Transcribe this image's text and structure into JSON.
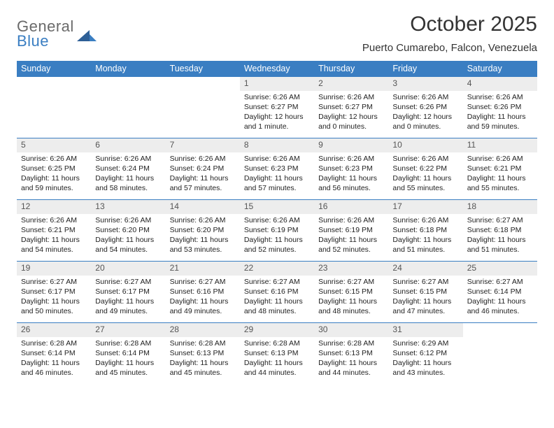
{
  "brand": {
    "top": "General",
    "bottom": "Blue"
  },
  "title": "October 2025",
  "location": "Puerto Cumarebo, Falcon, Venezuela",
  "colors": {
    "header_bg": "#3a7ec2",
    "header_text": "#ffffff",
    "daynum_bg": "#ededed",
    "border": "#3a7ec2",
    "logo_gray": "#6a6a6a",
    "logo_blue": "#3a7ec2"
  },
  "weekdays": [
    "Sunday",
    "Monday",
    "Tuesday",
    "Wednesday",
    "Thursday",
    "Friday",
    "Saturday"
  ],
  "weeks": [
    [
      {
        "n": "",
        "sr": "",
        "ss": "",
        "dl": ""
      },
      {
        "n": "",
        "sr": "",
        "ss": "",
        "dl": ""
      },
      {
        "n": "",
        "sr": "",
        "ss": "",
        "dl": ""
      },
      {
        "n": "1",
        "sr": "Sunrise: 6:26 AM",
        "ss": "Sunset: 6:27 PM",
        "dl": "Daylight: 12 hours and 1 minute."
      },
      {
        "n": "2",
        "sr": "Sunrise: 6:26 AM",
        "ss": "Sunset: 6:27 PM",
        "dl": "Daylight: 12 hours and 0 minutes."
      },
      {
        "n": "3",
        "sr": "Sunrise: 6:26 AM",
        "ss": "Sunset: 6:26 PM",
        "dl": "Daylight: 12 hours and 0 minutes."
      },
      {
        "n": "4",
        "sr": "Sunrise: 6:26 AM",
        "ss": "Sunset: 6:26 PM",
        "dl": "Daylight: 11 hours and 59 minutes."
      }
    ],
    [
      {
        "n": "5",
        "sr": "Sunrise: 6:26 AM",
        "ss": "Sunset: 6:25 PM",
        "dl": "Daylight: 11 hours and 59 minutes."
      },
      {
        "n": "6",
        "sr": "Sunrise: 6:26 AM",
        "ss": "Sunset: 6:24 PM",
        "dl": "Daylight: 11 hours and 58 minutes."
      },
      {
        "n": "7",
        "sr": "Sunrise: 6:26 AM",
        "ss": "Sunset: 6:24 PM",
        "dl": "Daylight: 11 hours and 57 minutes."
      },
      {
        "n": "8",
        "sr": "Sunrise: 6:26 AM",
        "ss": "Sunset: 6:23 PM",
        "dl": "Daylight: 11 hours and 57 minutes."
      },
      {
        "n": "9",
        "sr": "Sunrise: 6:26 AM",
        "ss": "Sunset: 6:23 PM",
        "dl": "Daylight: 11 hours and 56 minutes."
      },
      {
        "n": "10",
        "sr": "Sunrise: 6:26 AM",
        "ss": "Sunset: 6:22 PM",
        "dl": "Daylight: 11 hours and 55 minutes."
      },
      {
        "n": "11",
        "sr": "Sunrise: 6:26 AM",
        "ss": "Sunset: 6:21 PM",
        "dl": "Daylight: 11 hours and 55 minutes."
      }
    ],
    [
      {
        "n": "12",
        "sr": "Sunrise: 6:26 AM",
        "ss": "Sunset: 6:21 PM",
        "dl": "Daylight: 11 hours and 54 minutes."
      },
      {
        "n": "13",
        "sr": "Sunrise: 6:26 AM",
        "ss": "Sunset: 6:20 PM",
        "dl": "Daylight: 11 hours and 54 minutes."
      },
      {
        "n": "14",
        "sr": "Sunrise: 6:26 AM",
        "ss": "Sunset: 6:20 PM",
        "dl": "Daylight: 11 hours and 53 minutes."
      },
      {
        "n": "15",
        "sr": "Sunrise: 6:26 AM",
        "ss": "Sunset: 6:19 PM",
        "dl": "Daylight: 11 hours and 52 minutes."
      },
      {
        "n": "16",
        "sr": "Sunrise: 6:26 AM",
        "ss": "Sunset: 6:19 PM",
        "dl": "Daylight: 11 hours and 52 minutes."
      },
      {
        "n": "17",
        "sr": "Sunrise: 6:26 AM",
        "ss": "Sunset: 6:18 PM",
        "dl": "Daylight: 11 hours and 51 minutes."
      },
      {
        "n": "18",
        "sr": "Sunrise: 6:27 AM",
        "ss": "Sunset: 6:18 PM",
        "dl": "Daylight: 11 hours and 51 minutes."
      }
    ],
    [
      {
        "n": "19",
        "sr": "Sunrise: 6:27 AM",
        "ss": "Sunset: 6:17 PM",
        "dl": "Daylight: 11 hours and 50 minutes."
      },
      {
        "n": "20",
        "sr": "Sunrise: 6:27 AM",
        "ss": "Sunset: 6:17 PM",
        "dl": "Daylight: 11 hours and 49 minutes."
      },
      {
        "n": "21",
        "sr": "Sunrise: 6:27 AM",
        "ss": "Sunset: 6:16 PM",
        "dl": "Daylight: 11 hours and 49 minutes."
      },
      {
        "n": "22",
        "sr": "Sunrise: 6:27 AM",
        "ss": "Sunset: 6:16 PM",
        "dl": "Daylight: 11 hours and 48 minutes."
      },
      {
        "n": "23",
        "sr": "Sunrise: 6:27 AM",
        "ss": "Sunset: 6:15 PM",
        "dl": "Daylight: 11 hours and 48 minutes."
      },
      {
        "n": "24",
        "sr": "Sunrise: 6:27 AM",
        "ss": "Sunset: 6:15 PM",
        "dl": "Daylight: 11 hours and 47 minutes."
      },
      {
        "n": "25",
        "sr": "Sunrise: 6:27 AM",
        "ss": "Sunset: 6:14 PM",
        "dl": "Daylight: 11 hours and 46 minutes."
      }
    ],
    [
      {
        "n": "26",
        "sr": "Sunrise: 6:28 AM",
        "ss": "Sunset: 6:14 PM",
        "dl": "Daylight: 11 hours and 46 minutes."
      },
      {
        "n": "27",
        "sr": "Sunrise: 6:28 AM",
        "ss": "Sunset: 6:14 PM",
        "dl": "Daylight: 11 hours and 45 minutes."
      },
      {
        "n": "28",
        "sr": "Sunrise: 6:28 AM",
        "ss": "Sunset: 6:13 PM",
        "dl": "Daylight: 11 hours and 45 minutes."
      },
      {
        "n": "29",
        "sr": "Sunrise: 6:28 AM",
        "ss": "Sunset: 6:13 PM",
        "dl": "Daylight: 11 hours and 44 minutes."
      },
      {
        "n": "30",
        "sr": "Sunrise: 6:28 AM",
        "ss": "Sunset: 6:13 PM",
        "dl": "Daylight: 11 hours and 44 minutes."
      },
      {
        "n": "31",
        "sr": "Sunrise: 6:29 AM",
        "ss": "Sunset: 6:12 PM",
        "dl": "Daylight: 11 hours and 43 minutes."
      },
      {
        "n": "",
        "sr": "",
        "ss": "",
        "dl": ""
      }
    ]
  ]
}
